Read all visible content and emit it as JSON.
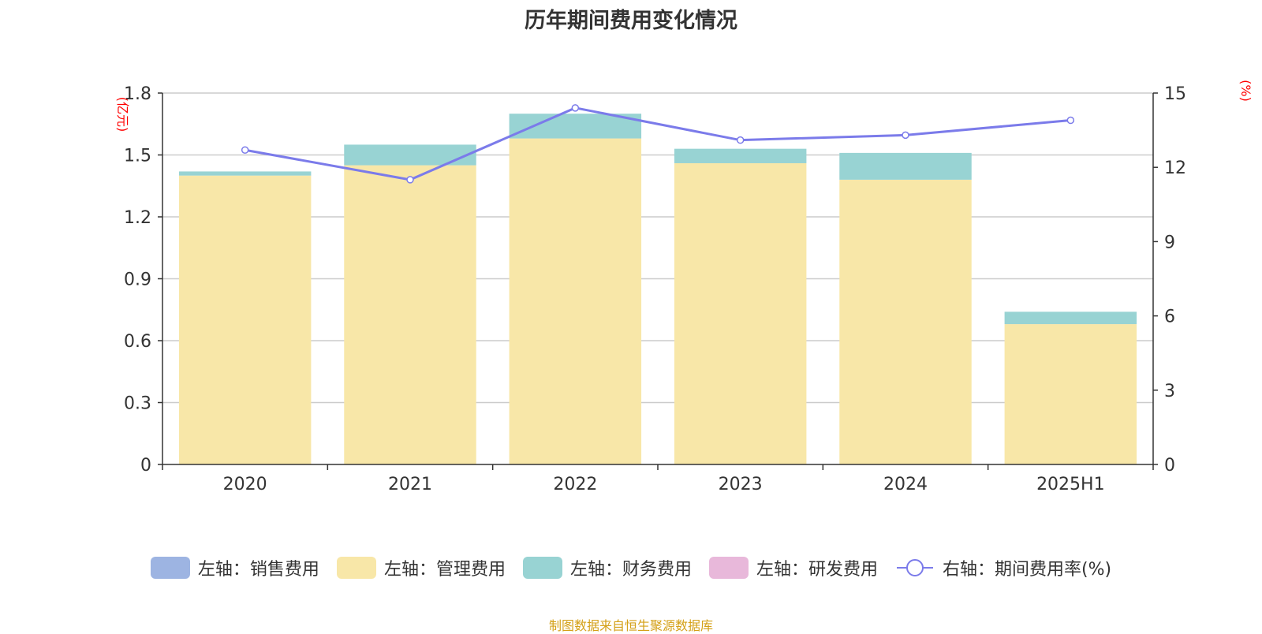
{
  "chart_data": {
    "type": "bar",
    "title": "历年期间费用变化情况",
    "categories": [
      "2020",
      "2021",
      "2022",
      "2023",
      "2024",
      "2025H1"
    ],
    "left_axis": {
      "unit_label": "(亿元)",
      "ylim": [
        0,
        1.8
      ],
      "ticks": [
        "0",
        "0.3",
        "0.6",
        "0.9",
        "1.2",
        "1.5",
        "1.8"
      ]
    },
    "right_axis": {
      "unit_label": "(%)",
      "ylim": [
        0,
        15
      ],
      "ticks": [
        "0",
        "3",
        "6",
        "9",
        "12",
        "15"
      ]
    },
    "series": [
      {
        "name": "左轴：销售费用",
        "kind": "bar",
        "color": "#9db4e2",
        "values": [
          0,
          0,
          0,
          0,
          0,
          0
        ]
      },
      {
        "name": "左轴：管理费用",
        "kind": "bar",
        "color": "#f8e7a8",
        "values": [
          1.4,
          1.45,
          1.58,
          1.46,
          1.38,
          0.68
        ]
      },
      {
        "name": "左轴：财务费用",
        "kind": "bar",
        "color": "#98d3d3",
        "values": [
          0.02,
          0.1,
          0.12,
          0.07,
          0.13,
          0.06
        ]
      },
      {
        "name": "左轴：研发费用",
        "kind": "bar",
        "color": "#e8b8da",
        "values": [
          0,
          0,
          0,
          0,
          0,
          0
        ]
      },
      {
        "name": "右轴：期间费用率(%)",
        "kind": "line",
        "color": "#7b7bea",
        "values": [
          12.7,
          11.5,
          14.4,
          13.1,
          13.3,
          13.9
        ]
      }
    ],
    "source": "制图数据来自恒生聚源数据库"
  }
}
